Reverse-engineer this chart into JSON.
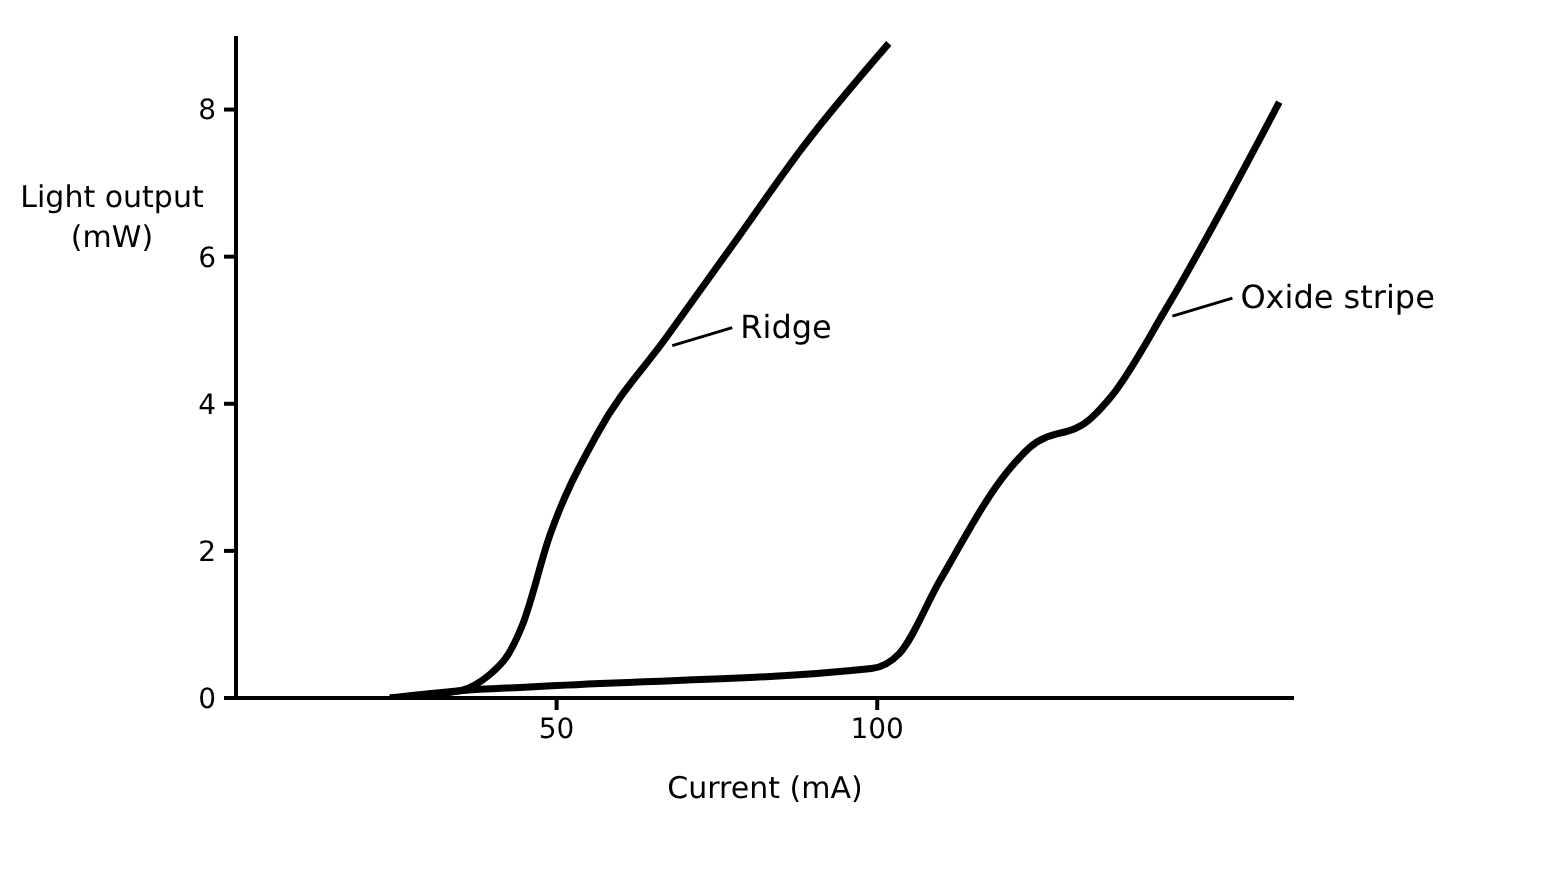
{
  "chart_data": {
    "type": "line",
    "xlabel": "Current (mA)",
    "ylabel": "Light output (mW)",
    "xlim": [
      0,
      165
    ],
    "ylim": [
      0,
      9
    ],
    "xticks": [
      50,
      100
    ],
    "yticks": [
      0,
      2,
      4,
      6,
      8
    ],
    "grid": false,
    "legend": "right",
    "marker": "none",
    "line_style": "solid",
    "series": [
      {
        "name": "Ridge",
        "color": "#000000",
        "x": [
          24,
          35,
          39.3,
          42.5,
          44.7,
          48.9,
          56.4,
          67.1,
          77.8,
          88.5,
          101.8
        ],
        "values": [
          0,
          0.1,
          0.3,
          0.6,
          1.0,
          2.2,
          3.6,
          4.9,
          6.2,
          7.5,
          8.9
        ]
      },
      {
        "name": "Oxide stripe",
        "color": "#000000",
        "x": [
          24,
          35,
          45.7,
          50,
          99.1,
          103.4,
          109.8,
          120.5,
          123.7,
          133.3,
          136.5,
          145.1,
          162.7
        ],
        "values": [
          0,
          0.1,
          0.15,
          0.17,
          0.4,
          0.6,
          1.6,
          3.1,
          3.4,
          3.8,
          4.1,
          5.3,
          8.1
        ]
      }
    ]
  }
}
